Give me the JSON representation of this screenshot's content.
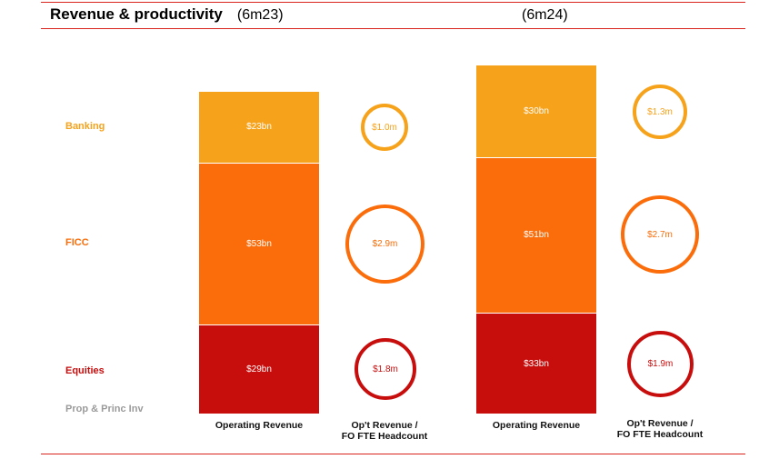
{
  "header": {
    "title": "Revenue & productivity",
    "period_left": "(6m23)",
    "period_right": "(6m24)"
  },
  "colors": {
    "banking": "#f7a21b",
    "ficc": "#fb6d0a",
    "equities": "#c80d0d",
    "prop": "#c8c8c8",
    "rule": "#d9231d"
  },
  "chart_data": {
    "type": "bar",
    "stacked": true,
    "segments": [
      "Banking",
      "FICC",
      "Equities",
      "Prop & Princ Inv"
    ],
    "categories": [
      "Operating Revenue",
      "Op't Revenue / FO FTE Headcount"
    ],
    "periods": [
      {
        "period": "(6m23)",
        "operating_revenue": {
          "values_bn": [
            23,
            53,
            29,
            null
          ],
          "labels": [
            "$23bn",
            "$53bn",
            "$29bn",
            ""
          ]
        },
        "per_head": {
          "values_m": [
            1.0,
            2.9,
            1.8
          ],
          "labels": [
            "$1.0m",
            "$2.9m",
            "$1.8m"
          ]
        }
      },
      {
        "period": "(6m24)",
        "operating_revenue": {
          "values_bn": [
            30,
            51,
            33,
            null
          ],
          "labels": [
            "$30bn",
            "$51bn",
            "$33bn",
            ""
          ]
        },
        "per_head": {
          "values_m": [
            1.3,
            2.7,
            1.9
          ],
          "labels": [
            "$1.3m",
            "$2.7m",
            "$1.9m"
          ]
        }
      }
    ],
    "xlabels": {
      "operating": "Operating Revenue",
      "per_head_line1": "Op't Revenue /",
      "per_head_line2": "FO FTE Headcount"
    }
  }
}
